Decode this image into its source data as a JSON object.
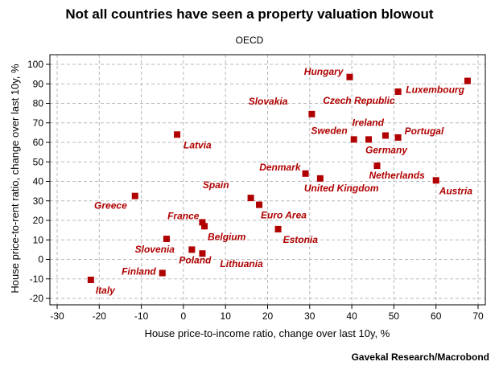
{
  "chart_data": {
    "type": "scatter",
    "title": "Not all countries have seen a property valuation blowout",
    "subtitle": "OECD",
    "source": "Gavekal Research/Macrobond",
    "xlabel": "House price-to-income ratio, change over last 10y, %",
    "ylabel": "House price-to-rent ratio, change over last 10y, %",
    "xlim": [
      -30,
      70
    ],
    "ylim": [
      -20,
      100
    ],
    "xticks": [
      -30,
      -20,
      -10,
      0,
      10,
      20,
      30,
      40,
      50,
      60,
      70
    ],
    "yticks": [
      -20,
      -10,
      0,
      10,
      20,
      30,
      40,
      50,
      60,
      70,
      80,
      90,
      100
    ],
    "grid": true,
    "marker_color": "#b00000",
    "points": [
      {
        "label": "Hungary",
        "x": 39.5,
        "y": 93.5
      },
      {
        "label": "Luxembourg",
        "x": 67.5,
        "y": 91.5
      },
      {
        "label": "Czech Republic",
        "x": 51,
        "y": 86
      },
      {
        "label": "Slovakia",
        "x": 30.5,
        "y": 74.5
      },
      {
        "label": "Latvia",
        "x": -1.5,
        "y": 64
      },
      {
        "label": "Ireland",
        "x": 48,
        "y": 63.5
      },
      {
        "label": "Sweden",
        "x": 40.5,
        "y": 61.5
      },
      {
        "label": "Germany",
        "x": 44,
        "y": 61.5
      },
      {
        "label": "Portugal",
        "x": 51,
        "y": 62.5
      },
      {
        "label": "Netherlands",
        "x": 46,
        "y": 48
      },
      {
        "label": "Denmark",
        "x": 29,
        "y": 44
      },
      {
        "label": "United Kingdom",
        "x": 32.5,
        "y": 41.5
      },
      {
        "label": "Austria",
        "x": 60,
        "y": 40.5
      },
      {
        "label": "Greece",
        "x": -11.5,
        "y": 32.5
      },
      {
        "label": "Spain",
        "x": 16,
        "y": 31.5
      },
      {
        "label": "Euro Area",
        "x": 18,
        "y": 28
      },
      {
        "label": "France",
        "x": 4.5,
        "y": 19
      },
      {
        "label": "Belgium",
        "x": 5,
        "y": 17
      },
      {
        "label": "Estonia",
        "x": 22.5,
        "y": 15.5
      },
      {
        "label": "Slovenia",
        "x": -4,
        "y": 10.5
      },
      {
        "label": "Poland",
        "x": 2,
        "y": 5
      },
      {
        "label": "Lithuania",
        "x": 4.5,
        "y": 3
      },
      {
        "label": "Finland",
        "x": -5,
        "y": -7
      },
      {
        "label": "Italy",
        "x": -22,
        "y": -10.5
      }
    ]
  }
}
